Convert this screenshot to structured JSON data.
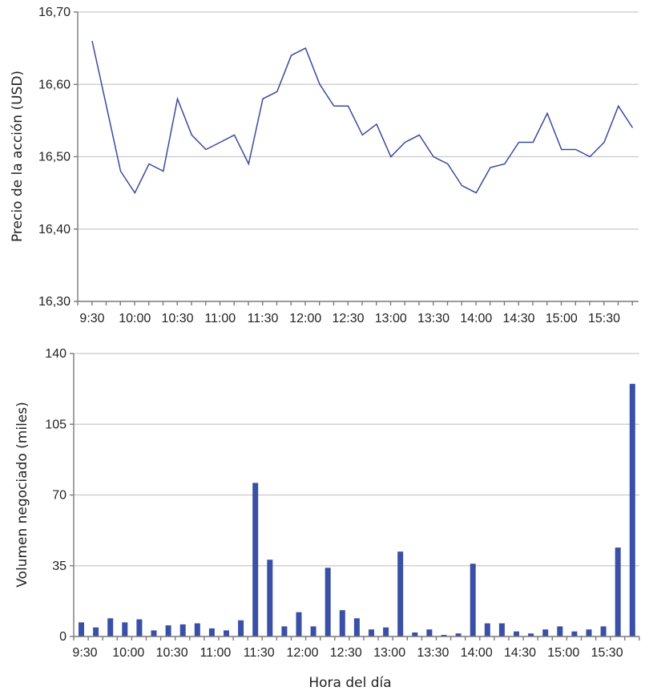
{
  "chart_data": [
    {
      "type": "line",
      "title": "",
      "xlabel": "",
      "ylabel": "Precio de la acción (USD)",
      "ylim": [
        16.3,
        16.7
      ],
      "yticks": [
        "16,30",
        "16,40",
        "16,50",
        "16,60",
        "16,70"
      ],
      "ytick_values": [
        16.3,
        16.4,
        16.5,
        16.6,
        16.7
      ],
      "xtick_labels": [
        "9:30",
        "10:00",
        "10:30",
        "11:00",
        "11:30",
        "12:00",
        "12:30",
        "13:00",
        "13:30",
        "14:00",
        "14:30",
        "15:00",
        "15:30"
      ],
      "grid": true,
      "color": "#3a4a9c",
      "x": [
        "9:30",
        "9:40",
        "9:50",
        "10:00",
        "10:10",
        "10:20",
        "10:30",
        "10:40",
        "10:50",
        "11:00",
        "11:10",
        "11:20",
        "11:30",
        "11:40",
        "11:50",
        "12:00",
        "12:10",
        "12:20",
        "12:30",
        "12:40",
        "12:50",
        "13:00",
        "13:10",
        "13:20",
        "13:30",
        "13:40",
        "13:50",
        "14:00",
        "14:10",
        "14:20",
        "14:30",
        "14:40",
        "14:50",
        "15:00",
        "15:10",
        "15:20",
        "15:30",
        "15:40",
        "15:50"
      ],
      "values": [
        16.66,
        16.57,
        16.48,
        16.45,
        16.49,
        16.48,
        16.58,
        16.53,
        16.51,
        16.52,
        16.53,
        16.49,
        16.58,
        16.59,
        16.64,
        16.65,
        16.6,
        16.57,
        16.57,
        16.53,
        16.545,
        16.5,
        16.52,
        16.53,
        16.5,
        16.49,
        16.46,
        16.45,
        16.485,
        16.49,
        16.52,
        16.52,
        16.56,
        16.51,
        16.51,
        16.5,
        16.52,
        16.57,
        16.54
      ]
    },
    {
      "type": "bar",
      "title": "",
      "xlabel": "Hora del día",
      "ylabel": "Volumen negociado (miles)",
      "ylim": [
        0,
        140
      ],
      "yticks": [
        "0",
        "35",
        "70",
        "105",
        "140"
      ],
      "ytick_values": [
        0,
        35,
        70,
        105,
        140
      ],
      "xtick_labels": [
        "9:30",
        "10:00",
        "10:30",
        "11:00",
        "11:30",
        "12:00",
        "12:30",
        "13:00",
        "13:30",
        "14:00",
        "14:30",
        "15:00",
        "15:30"
      ],
      "grid": true,
      "color": "#3a4fa6",
      "values": [
        7,
        4.5,
        9,
        7,
        8.5,
        3,
        5.5,
        6,
        6.5,
        4,
        3,
        8,
        76,
        38,
        5,
        12,
        5,
        34,
        13,
        9,
        3.5,
        4.5,
        42,
        2,
        3.5,
        0.8,
        1.5,
        36,
        6.5,
        6.5,
        2.5,
        1.5,
        3.5,
        5,
        2.5,
        3.5,
        5,
        44,
        125
      ]
    }
  ],
  "labels": {
    "top_ylabel": "Precio de la acción (USD)",
    "bottom_ylabel": "Volumen negociado (miles)",
    "xlabel": "Hora del día"
  }
}
